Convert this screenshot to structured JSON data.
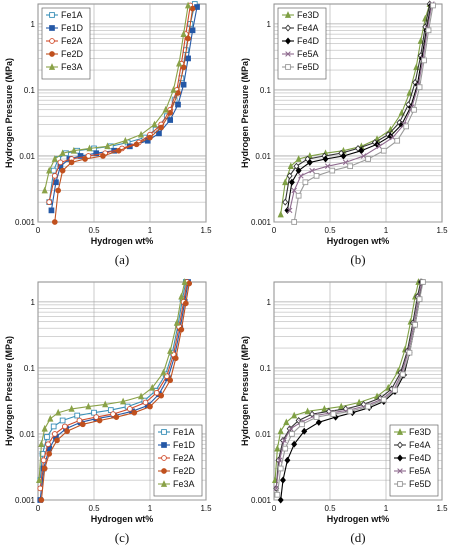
{
  "colors": {
    "Fe1A": "#3a8fb7",
    "Fe1D": "#2458a6",
    "Fe2A": "#d04a2a",
    "Fe2D": "#c0501e",
    "Fe3A": "#8aa248",
    "Fe3D": "#7fa044",
    "Fe4A": "#333333",
    "Fe4D": "#000000",
    "Fe5A": "#8e6a8e",
    "Fe5D": "#9a9a9a",
    "grid": "#a8a8a8",
    "axis": "#444444"
  },
  "chart_data": [
    {
      "panel": "a",
      "caption": "(a)",
      "type": "line",
      "xlabel": "Hydrogen wt%",
      "ylabel": "Hydrogen Pressure  (MPa)",
      "xlim": [
        0,
        1.5
      ],
      "ylim": [
        0.001,
        2
      ],
      "yscale": "log",
      "xticks": [
        "0",
        "0.5",
        "1",
        "1.5"
      ],
      "yticks": [
        "0.001",
        "0.01",
        "0.1",
        "1"
      ],
      "legend": "top-left",
      "series": [
        {
          "name": "Fe1A",
          "marker": "square-open",
          "x": [
            0.1,
            0.14,
            0.18,
            0.25,
            0.35,
            0.5,
            0.65,
            0.8,
            0.95,
            1.05,
            1.15,
            1.22,
            1.28,
            1.32,
            1.36,
            1.4
          ],
          "y": [
            0.002,
            0.006,
            0.009,
            0.011,
            0.012,
            0.013,
            0.014,
            0.016,
            0.019,
            0.025,
            0.04,
            0.07,
            0.15,
            0.4,
            1.0,
            2.0
          ]
        },
        {
          "name": "Fe1D",
          "marker": "square",
          "x": [
            0.12,
            0.16,
            0.2,
            0.28,
            0.38,
            0.52,
            0.68,
            0.82,
            0.98,
            1.08,
            1.18,
            1.25,
            1.3,
            1.34,
            1.38,
            1.42
          ],
          "y": [
            0.0015,
            0.004,
            0.007,
            0.009,
            0.01,
            0.011,
            0.012,
            0.014,
            0.017,
            0.022,
            0.035,
            0.06,
            0.12,
            0.3,
            0.8,
            1.8
          ]
        },
        {
          "name": "Fe2A",
          "marker": "circle-open",
          "x": [
            0.1,
            0.15,
            0.2,
            0.3,
            0.45,
            0.6,
            0.75,
            0.9,
            1.0,
            1.1,
            1.18,
            1.24,
            1.28,
            1.32,
            1.36
          ],
          "y": [
            0.002,
            0.005,
            0.008,
            0.009,
            0.01,
            0.011,
            0.013,
            0.016,
            0.021,
            0.03,
            0.05,
            0.1,
            0.25,
            0.7,
            1.9
          ]
        },
        {
          "name": "Fe2D",
          "marker": "circle",
          "x": [
            0.15,
            0.18,
            0.22,
            0.3,
            0.42,
            0.58,
            0.72,
            0.88,
            1.0,
            1.1,
            1.18,
            1.25,
            1.3,
            1.34,
            1.38
          ],
          "y": [
            0.001,
            0.003,
            0.006,
            0.008,
            0.009,
            0.01,
            0.012,
            0.015,
            0.019,
            0.027,
            0.045,
            0.09,
            0.22,
            0.6,
            1.7
          ]
        },
        {
          "name": "Fe3A",
          "marker": "triangle",
          "x": [
            0.06,
            0.1,
            0.15,
            0.22,
            0.32,
            0.46,
            0.62,
            0.78,
            0.92,
            1.04,
            1.14,
            1.21,
            1.26,
            1.3,
            1.34
          ],
          "y": [
            0.003,
            0.006,
            0.009,
            0.011,
            0.012,
            0.013,
            0.014,
            0.017,
            0.021,
            0.03,
            0.05,
            0.1,
            0.25,
            0.7,
            1.9
          ]
        }
      ]
    },
    {
      "panel": "b",
      "caption": "(b)",
      "type": "line",
      "xlabel": "Hydrogen wt%",
      "ylabel": "Hydrogen Pressure  (MPa)",
      "xlim": [
        0,
        1.5
      ],
      "ylim": [
        0.001,
        2
      ],
      "yscale": "log",
      "xticks": [
        "0",
        "0.5",
        "1",
        "1.5"
      ],
      "yticks": [
        "0.001",
        "0.01",
        "0.1",
        "1"
      ],
      "legend": "top-left",
      "series": [
        {
          "name": "Fe3D",
          "marker": "triangle",
          "x": [
            0.06,
            0.1,
            0.15,
            0.22,
            0.32,
            0.46,
            0.62,
            0.78,
            0.92,
            1.04,
            1.14,
            1.21,
            1.27,
            1.31,
            1.35,
            1.39
          ],
          "y": [
            0.0013,
            0.004,
            0.007,
            0.009,
            0.01,
            0.011,
            0.012,
            0.014,
            0.018,
            0.025,
            0.045,
            0.09,
            0.22,
            0.55,
            1.2,
            2.0
          ]
        },
        {
          "name": "Fe4A",
          "marker": "diamond-open",
          "x": [
            0.1,
            0.14,
            0.2,
            0.3,
            0.45,
            0.6,
            0.75,
            0.9,
            1.02,
            1.12,
            1.2,
            1.26,
            1.31,
            1.35,
            1.39
          ],
          "y": [
            0.002,
            0.005,
            0.007,
            0.009,
            0.01,
            0.011,
            0.013,
            0.016,
            0.021,
            0.032,
            0.06,
            0.13,
            0.33,
            0.9,
            2.0
          ]
        },
        {
          "name": "Fe4D",
          "marker": "diamond",
          "x": [
            0.12,
            0.16,
            0.22,
            0.32,
            0.46,
            0.62,
            0.78,
            0.92,
            1.04,
            1.14,
            1.22,
            1.28,
            1.32,
            1.36,
            1.4
          ],
          "y": [
            0.0015,
            0.004,
            0.006,
            0.008,
            0.009,
            0.01,
            0.012,
            0.015,
            0.02,
            0.03,
            0.055,
            0.12,
            0.3,
            0.8,
            1.9
          ]
        },
        {
          "name": "Fe5A",
          "marker": "cross",
          "x": [
            0.14,
            0.18,
            0.24,
            0.34,
            0.48,
            0.64,
            0.8,
            0.94,
            1.06,
            1.16,
            1.23,
            1.29,
            1.33,
            1.37,
            1.41
          ],
          "y": [
            0.0015,
            0.003,
            0.005,
            0.006,
            0.007,
            0.008,
            0.01,
            0.014,
            0.019,
            0.03,
            0.055,
            0.12,
            0.3,
            0.85,
            2.0
          ]
        },
        {
          "name": "Fe5D",
          "marker": "square-open",
          "x": [
            0.18,
            0.22,
            0.28,
            0.38,
            0.52,
            0.68,
            0.84,
            0.98,
            1.1,
            1.18,
            1.25,
            1.3,
            1.34,
            1.38,
            1.42
          ],
          "y": [
            0.001,
            0.0025,
            0.004,
            0.005,
            0.006,
            0.007,
            0.009,
            0.012,
            0.017,
            0.028,
            0.05,
            0.11,
            0.28,
            0.8,
            1.9
          ]
        }
      ]
    },
    {
      "panel": "c",
      "caption": "(c)",
      "type": "line",
      "xlabel": "Hydrogen wt%",
      "ylabel": "Hydrogen Pressure  (MPa)",
      "xlim": [
        0,
        1.5
      ],
      "ylim": [
        0.001,
        2
      ],
      "yscale": "log",
      "xticks": [
        "0",
        "0.5",
        "1",
        "1.5"
      ],
      "yticks": [
        "0.001",
        "0.01",
        "0.1",
        "1"
      ],
      "legend": "bottom-right",
      "series": [
        {
          "name": "Fe1A",
          "marker": "square-open",
          "x": [
            0.02,
            0.04,
            0.08,
            0.14,
            0.22,
            0.35,
            0.5,
            0.65,
            0.8,
            0.95,
            1.05,
            1.14,
            1.2,
            1.25,
            1.29,
            1.32
          ],
          "y": [
            0.002,
            0.005,
            0.009,
            0.013,
            0.016,
            0.019,
            0.021,
            0.023,
            0.026,
            0.032,
            0.045,
            0.08,
            0.17,
            0.45,
            1.1,
            2.0
          ]
        },
        {
          "name": "Fe1D",
          "marker": "square",
          "x": [
            0.02,
            0.05,
            0.1,
            0.16,
            0.25,
            0.38,
            0.52,
            0.68,
            0.84,
            0.98,
            1.08,
            1.16,
            1.22,
            1.27,
            1.31,
            1.34
          ],
          "y": [
            0.001,
            0.003,
            0.006,
            0.009,
            0.012,
            0.015,
            0.017,
            0.019,
            0.022,
            0.027,
            0.04,
            0.07,
            0.15,
            0.4,
            1.0,
            2.0
          ]
        },
        {
          "name": "Fe2A",
          "marker": "circle-open",
          "x": [
            0.02,
            0.05,
            0.09,
            0.15,
            0.24,
            0.37,
            0.52,
            0.67,
            0.82,
            0.96,
            1.06,
            1.15,
            1.21,
            1.26,
            1.3,
            1.33
          ],
          "y": [
            0.0015,
            0.004,
            0.007,
            0.01,
            0.013,
            0.016,
            0.018,
            0.02,
            0.024,
            0.03,
            0.042,
            0.075,
            0.16,
            0.42,
            1.0,
            2.0
          ]
        },
        {
          "name": "Fe2D",
          "marker": "circle",
          "x": [
            0.03,
            0.06,
            0.1,
            0.17,
            0.26,
            0.4,
            0.55,
            0.7,
            0.86,
            1.0,
            1.1,
            1.18,
            1.23,
            1.28,
            1.32,
            1.35
          ],
          "y": [
            0.001,
            0.003,
            0.005,
            0.008,
            0.011,
            0.014,
            0.016,
            0.018,
            0.021,
            0.026,
            0.038,
            0.065,
            0.14,
            0.38,
            0.95,
            1.9
          ]
        },
        {
          "name": "Fe3A",
          "marker": "triangle",
          "x": [
            0.01,
            0.03,
            0.06,
            0.11,
            0.18,
            0.3,
            0.45,
            0.6,
            0.76,
            0.92,
            1.02,
            1.12,
            1.18,
            1.24,
            1.28,
            1.31
          ],
          "y": [
            0.002,
            0.007,
            0.012,
            0.017,
            0.021,
            0.024,
            0.026,
            0.028,
            0.031,
            0.037,
            0.05,
            0.085,
            0.18,
            0.48,
            1.2,
            2.0
          ]
        }
      ]
    },
    {
      "panel": "d",
      "caption": "(d)",
      "type": "line",
      "xlabel": "Hydrogen wt%",
      "ylabel": "Hydrogen Pressure  (MPa)",
      "xlim": [
        0,
        1.5
      ],
      "ylim": [
        0.001,
        2
      ],
      "yscale": "log",
      "xticks": [
        "0",
        "0.5",
        "1",
        "1.5"
      ],
      "yticks": [
        "0.001",
        "0.01",
        "0.1",
        "1"
      ],
      "legend": "bottom-right",
      "series": [
        {
          "name": "Fe3D",
          "marker": "triangle",
          "x": [
            0.01,
            0.03,
            0.06,
            0.11,
            0.18,
            0.3,
            0.45,
            0.6,
            0.76,
            0.92,
            1.02,
            1.11,
            1.17,
            1.22,
            1.26,
            1.29
          ],
          "y": [
            0.002,
            0.006,
            0.011,
            0.015,
            0.019,
            0.022,
            0.024,
            0.026,
            0.03,
            0.037,
            0.05,
            0.09,
            0.19,
            0.5,
            1.2,
            2.0
          ]
        },
        {
          "name": "Fe4A",
          "marker": "diamond-open",
          "x": [
            0.02,
            0.04,
            0.08,
            0.14,
            0.22,
            0.34,
            0.49,
            0.64,
            0.8,
            0.95,
            1.05,
            1.13,
            1.19,
            1.24,
            1.28,
            1.31
          ],
          "y": [
            0.0015,
            0.004,
            0.008,
            0.012,
            0.016,
            0.02,
            0.022,
            0.024,
            0.028,
            0.035,
            0.048,
            0.085,
            0.18,
            0.48,
            1.2,
            2.0
          ]
        },
        {
          "name": "Fe4D",
          "marker": "diamond",
          "x": [
            0.06,
            0.08,
            0.12,
            0.18,
            0.27,
            0.4,
            0.55,
            0.7,
            0.85,
            0.98,
            1.08,
            1.16,
            1.21,
            1.26,
            1.3,
            1.32
          ],
          "y": [
            0.001,
            0.002,
            0.004,
            0.007,
            0.011,
            0.015,
            0.018,
            0.021,
            0.025,
            0.031,
            0.044,
            0.078,
            0.17,
            0.45,
            1.1,
            2.0
          ]
        },
        {
          "name": "Fe5A",
          "marker": "cross",
          "x": [
            0.02,
            0.05,
            0.09,
            0.15,
            0.24,
            0.37,
            0.52,
            0.67,
            0.83,
            0.97,
            1.07,
            1.14,
            1.2,
            1.25,
            1.29,
            1.32
          ],
          "y": [
            0.0015,
            0.004,
            0.008,
            0.012,
            0.015,
            0.019,
            0.021,
            0.023,
            0.027,
            0.034,
            0.047,
            0.083,
            0.18,
            0.46,
            1.15,
            2.0
          ]
        },
        {
          "name": "Fe5D",
          "marker": "square-open",
          "x": [
            0.03,
            0.06,
            0.1,
            0.16,
            0.25,
            0.38,
            0.53,
            0.68,
            0.84,
            0.98,
            1.08,
            1.15,
            1.21,
            1.26,
            1.3,
            1.33
          ],
          "y": [
            0.0012,
            0.003,
            0.006,
            0.01,
            0.014,
            0.018,
            0.02,
            0.022,
            0.026,
            0.033,
            0.046,
            0.08,
            0.17,
            0.45,
            1.1,
            2.0
          ]
        }
      ]
    }
  ]
}
